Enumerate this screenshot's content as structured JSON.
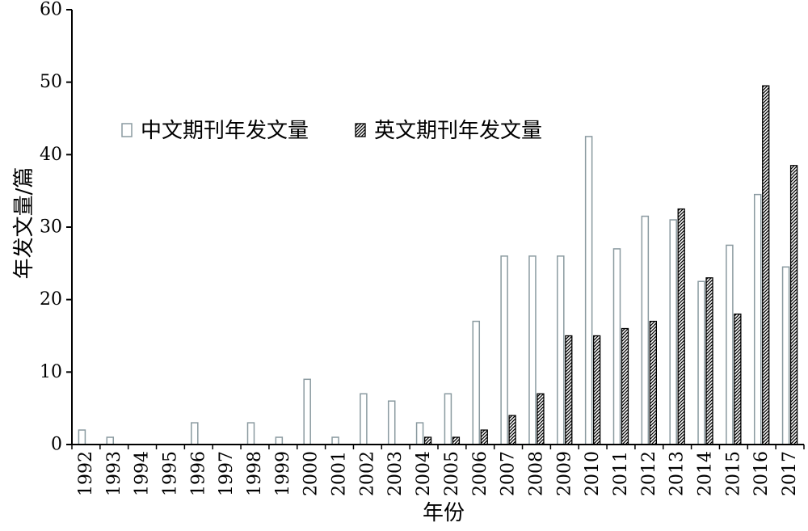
{
  "chart_data": {
    "type": "bar",
    "title": "",
    "xlabel": "年份",
    "ylabel": "年发文量/篇",
    "ylim": [
      0,
      60
    ],
    "yticks": [
      0,
      10,
      20,
      30,
      40,
      50,
      60
    ],
    "grid": false,
    "legend_position": "top-left",
    "categories": [
      "1992",
      "1993",
      "1994",
      "1995",
      "1996",
      "1997",
      "1998",
      "1999",
      "2000",
      "2001",
      "2002",
      "2003",
      "2004",
      "2005",
      "2006",
      "2007",
      "2008",
      "2009",
      "2010",
      "2011",
      "2012",
      "2013",
      "2014",
      "2015",
      "2016",
      "2017"
    ],
    "series": [
      {
        "name": "中文期刊年发文量",
        "style": "hollow",
        "color": "#8a9aa0",
        "values": [
          2,
          1,
          0,
          0,
          3,
          0,
          3,
          1,
          9,
          1,
          7,
          6,
          3,
          7,
          17,
          26,
          26,
          26,
          42.5,
          27,
          31.5,
          31,
          22.5,
          27.5,
          34.5,
          24.5
        ]
      },
      {
        "name": "英文期刊年发文量",
        "style": "hatched",
        "color": "#000000",
        "values": [
          0,
          0,
          0,
          0,
          0,
          0,
          0,
          0,
          0,
          0,
          0,
          0,
          1,
          1,
          2,
          4,
          7,
          15,
          15,
          16,
          17,
          32.5,
          23,
          18,
          49.5,
          38.5
        ]
      }
    ]
  }
}
